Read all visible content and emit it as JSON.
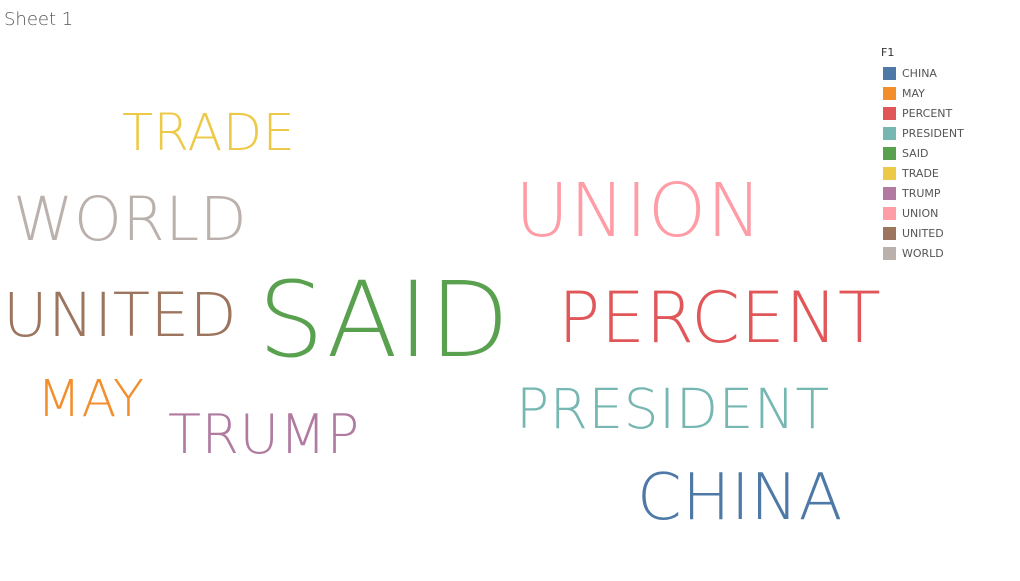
{
  "sheet": {
    "title": "Sheet 1"
  },
  "chart_data": {
    "type": "wordcloud",
    "legend": {
      "title": "F1",
      "placement": "top-right",
      "entries": [
        {
          "label": "CHINA",
          "color": "#4e79a7"
        },
        {
          "label": "MAY",
          "color": "#f28e2b"
        },
        {
          "label": "PERCENT",
          "color": "#e15759"
        },
        {
          "label": "PRESIDENT",
          "color": "#76b7b2"
        },
        {
          "label": "SAID",
          "color": "#59a14f"
        },
        {
          "label": "TRADE",
          "color": "#edc948"
        },
        {
          "label": "TRUMP",
          "color": "#b07aa1"
        },
        {
          "label": "UNION",
          "color": "#ff9da7"
        },
        {
          "label": "UNITED",
          "color": "#9c755f"
        },
        {
          "label": "WORLD",
          "color": "#bab0ac"
        }
      ]
    },
    "words": [
      {
        "text": "SAID",
        "color": "#59a14f"
      },
      {
        "text": "UNION",
        "color": "#ff9da7"
      },
      {
        "text": "PERCENT",
        "color": "#e15759"
      },
      {
        "text": "UNITED",
        "color": "#9c755f"
      },
      {
        "text": "WORLD",
        "color": "#bab0ac"
      },
      {
        "text": "PRESIDENT",
        "color": "#76b7b2"
      },
      {
        "text": "CHINA",
        "color": "#4e79a7"
      },
      {
        "text": "TRUMP",
        "color": "#b07aa1"
      },
      {
        "text": "TRADE",
        "color": "#edc948"
      },
      {
        "text": "MAY",
        "color": "#f28e2b"
      }
    ]
  }
}
